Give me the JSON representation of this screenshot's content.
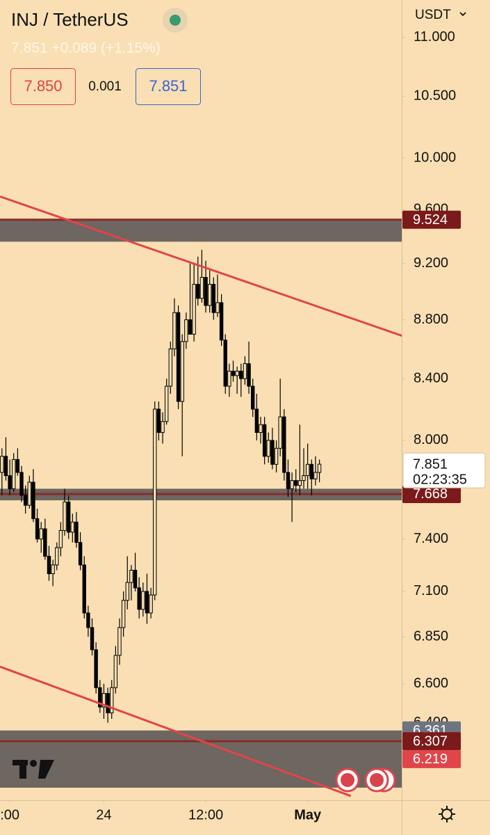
{
  "chart_data": {
    "type": "candlestick",
    "title": "INJ / TetherUS",
    "subtitle": "7.851 +0.089 (+1.15%)",
    "sell_price": "7.850",
    "spread": "0.001",
    "buy_price": "7.851",
    "currency": "USDT",
    "countdown": "02:23:35",
    "log_scale": true,
    "grid": false,
    "ylim": [
      6.02,
      11.33
    ],
    "yticks": [
      {
        "value": 11,
        "label": "11.000"
      },
      {
        "value": 10.5,
        "label": "10.500"
      },
      {
        "value": 10,
        "label": "10.000"
      },
      {
        "value": 9.6,
        "label": "9.600"
      },
      {
        "value": 9.2,
        "label": "9.200"
      },
      {
        "value": 8.8,
        "label": "8.800"
      },
      {
        "value": 8.4,
        "label": "8.400"
      },
      {
        "value": 8,
        "label": "8.000"
      },
      {
        "value": 7.4,
        "label": "7.400"
      },
      {
        "value": 7.1,
        "label": "7.100"
      },
      {
        "value": 6.85,
        "label": "6.850"
      },
      {
        "value": 6.6,
        "label": "6.600"
      },
      {
        "value": 6.4,
        "label": "6.400"
      }
    ],
    "xlim": [
      -0.5,
      102
    ],
    "xticks": [
      {
        "value": 2,
        "label": ":00"
      },
      {
        "value": 26,
        "label": "24"
      },
      {
        "value": 52,
        "label": "12:00"
      },
      {
        "value": 78,
        "label": "May"
      }
    ],
    "up_color": "#f9dfb3",
    "down_color": "#000000",
    "ohlc": [
      [
        7.8,
        7.95,
        7.66,
        7.9
      ],
      [
        7.9,
        8.02,
        7.75,
        7.78
      ],
      [
        7.78,
        7.88,
        7.66,
        7.7
      ],
      [
        7.7,
        7.92,
        7.68,
        7.88
      ],
      [
        7.88,
        7.95,
        7.78,
        7.8
      ],
      [
        7.8,
        7.84,
        7.62,
        7.66
      ],
      [
        7.66,
        7.72,
        7.55,
        7.6
      ],
      [
        7.6,
        7.78,
        7.58,
        7.74
      ],
      [
        7.74,
        7.82,
        7.5,
        7.52
      ],
      [
        7.52,
        7.58,
        7.38,
        7.4
      ],
      [
        7.4,
        7.5,
        7.32,
        7.46
      ],
      [
        7.46,
        7.52,
        7.28,
        7.3
      ],
      [
        7.3,
        7.36,
        7.16,
        7.2
      ],
      [
        7.2,
        7.28,
        7.13,
        7.25
      ],
      [
        7.25,
        7.38,
        7.22,
        7.35
      ],
      [
        7.35,
        7.5,
        7.3,
        7.45
      ],
      [
        7.45,
        7.7,
        7.42,
        7.62
      ],
      [
        7.62,
        7.66,
        7.4,
        7.44
      ],
      [
        7.44,
        7.55,
        7.38,
        7.5
      ],
      [
        7.5,
        7.56,
        7.35,
        7.38
      ],
      [
        7.38,
        7.44,
        7.22,
        7.25
      ],
      [
        7.25,
        7.3,
        6.95,
        6.98
      ],
      [
        6.98,
        7.02,
        6.85,
        6.9
      ],
      [
        6.9,
        6.95,
        6.75,
        6.78
      ],
      [
        6.78,
        6.82,
        6.55,
        6.58
      ],
      [
        6.58,
        6.62,
        6.45,
        6.48
      ],
      [
        6.48,
        6.6,
        6.42,
        6.55
      ],
      [
        6.55,
        6.58,
        6.4,
        6.45
      ],
      [
        6.45,
        6.62,
        6.42,
        6.58
      ],
      [
        6.58,
        6.8,
        6.55,
        6.75
      ],
      [
        6.75,
        6.95,
        6.7,
        6.9
      ],
      [
        6.9,
        7.1,
        6.85,
        7.05
      ],
      [
        7.05,
        7.3,
        7.0,
        7.15
      ],
      [
        7.15,
        7.25,
        7.05,
        7.22
      ],
      [
        7.22,
        7.32,
        7.1,
        7.12
      ],
      [
        7.12,
        7.18,
        6.95,
        7.0
      ],
      [
        7.0,
        7.15,
        6.96,
        7.1
      ],
      [
        7.1,
        7.2,
        6.92,
        6.98
      ],
      [
        6.98,
        7.12,
        6.95,
        7.08
      ],
      [
        7.08,
        8.25,
        7.05,
        8.2
      ],
      [
        8.2,
        8.25,
        8.0,
        8.05
      ],
      [
        8.05,
        8.18,
        7.98,
        8.12
      ],
      [
        8.12,
        8.4,
        8.1,
        8.35
      ],
      [
        8.35,
        8.65,
        8.3,
        8.6
      ],
      [
        8.6,
        8.95,
        8.55,
        8.85
      ],
      [
        8.85,
        8.9,
        8.2,
        8.25
      ],
      [
        8.25,
        8.7,
        7.9,
        8.65
      ],
      [
        8.65,
        8.85,
        8.6,
        8.8
      ],
      [
        8.8,
        9.2,
        8.75,
        8.7
      ],
      [
        8.7,
        9.2,
        8.65,
        9.05
      ],
      [
        9.05,
        9.25,
        8.9,
        8.95
      ],
      [
        8.95,
        9.3,
        8.92,
        9.1
      ],
      [
        9.1,
        9.22,
        8.85,
        8.9
      ],
      [
        8.9,
        9.15,
        8.85,
        9.05
      ],
      [
        9.05,
        9.1,
        8.8,
        8.85
      ],
      [
        8.85,
        9.12,
        8.82,
        8.92
      ],
      [
        8.92,
        8.98,
        8.62,
        8.66
      ],
      [
        8.66,
        8.7,
        8.3,
        8.35
      ],
      [
        8.35,
        8.5,
        8.28,
        8.45
      ],
      [
        8.45,
        8.52,
        8.38,
        8.42
      ],
      [
        8.42,
        8.48,
        8.3,
        8.45
      ],
      [
        8.45,
        8.5,
        8.28,
        8.4
      ],
      [
        8.4,
        8.55,
        8.36,
        8.5
      ],
      [
        8.5,
        8.65,
        8.3,
        8.35
      ],
      [
        8.35,
        8.4,
        8.15,
        8.2
      ],
      [
        8.2,
        8.3,
        8.0,
        8.05
      ],
      [
        8.05,
        8.15,
        7.98,
        8.1
      ],
      [
        8.1,
        8.15,
        7.85,
        7.9
      ],
      [
        7.9,
        8.05,
        7.86,
        8.0
      ],
      [
        8.0,
        8.08,
        7.82,
        7.85
      ],
      [
        7.85,
        8.0,
        7.8,
        7.95
      ],
      [
        7.95,
        8.4,
        7.9,
        8.15
      ],
      [
        8.15,
        8.2,
        7.75,
        7.8
      ],
      [
        7.8,
        7.88,
        7.65,
        7.7
      ],
      [
        7.7,
        7.8,
        7.5,
        7.75
      ],
      [
        7.75,
        7.82,
        7.68,
        7.72
      ],
      [
        7.72,
        8.1,
        7.66,
        7.75
      ],
      [
        7.75,
        7.95,
        7.7,
        7.78
      ],
      [
        7.78,
        7.98,
        7.7,
        7.85
      ],
      [
        7.85,
        7.88,
        7.66,
        7.76
      ],
      [
        7.76,
        7.9,
        7.72,
        7.8
      ],
      [
        7.8,
        7.88,
        7.74,
        7.851
      ]
    ],
    "zones": [
      {
        "from": 9.36,
        "to": 9.524
      },
      {
        "from": 7.63,
        "to": 7.7
      },
      {
        "from": 6.08,
        "to": 6.361
      }
    ],
    "zone_color": "#6e6660",
    "levels": [
      {
        "value": 9.524,
        "color": "#7b1a1a",
        "line": true
      },
      {
        "value": 7.668,
        "color": "#7b1a1a",
        "line": true
      },
      {
        "value": 6.361,
        "color": "#6e7480",
        "line": false
      },
      {
        "value": 6.307,
        "color": "#7b1a1a",
        "line": true
      },
      {
        "value": 6.219,
        "color": "#e0454a",
        "line": false
      }
    ],
    "last_price": 7.851,
    "trendlines": [
      {
        "color": "#e0454a",
        "x": [
          -0.5,
          102
        ],
        "y": [
          9.7,
          8.69
        ]
      },
      {
        "color": "#e0454a",
        "x": [
          -0.5,
          89
        ],
        "y": [
          6.69,
          6.04
        ]
      }
    ]
  }
}
